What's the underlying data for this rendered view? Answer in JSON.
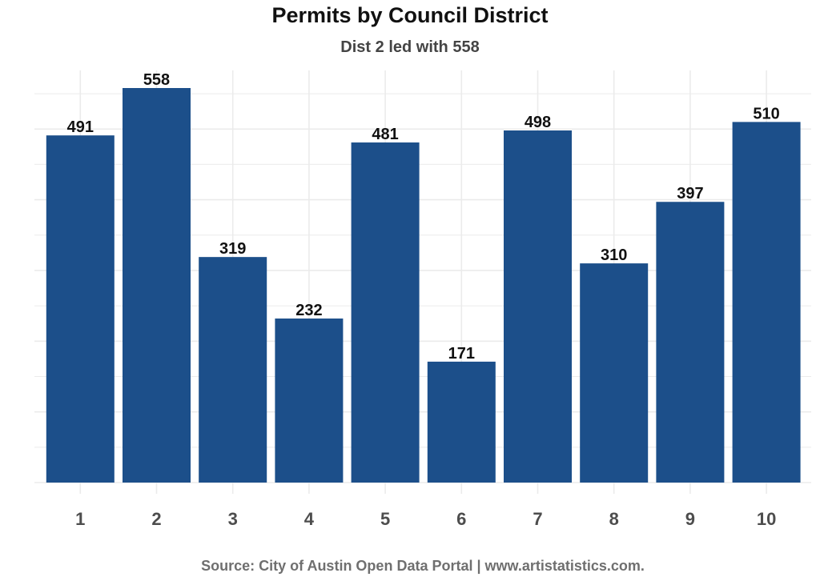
{
  "chart_data": {
    "type": "bar",
    "title": "Permits by Council District",
    "subtitle": "Dist 2 led with 558",
    "caption": "Source: City of Austin Open Data Portal | www.artistatistics.com.",
    "categories": [
      "1",
      "2",
      "3",
      "4",
      "5",
      "6",
      "7",
      "8",
      "9",
      "10"
    ],
    "values": [
      491,
      558,
      319,
      232,
      481,
      171,
      498,
      310,
      397,
      510
    ],
    "data_labels": [
      "491",
      "558",
      "319",
      "232",
      "481",
      "171",
      "498",
      "310",
      "397",
      "510"
    ],
    "xlabel": "",
    "ylabel": "",
    "ylim": [
      0,
      558
    ],
    "y_axis_labels_shown": false,
    "grid": true,
    "bar_color": "#1c4f8a",
    "grid_color": "#ebebeb"
  }
}
